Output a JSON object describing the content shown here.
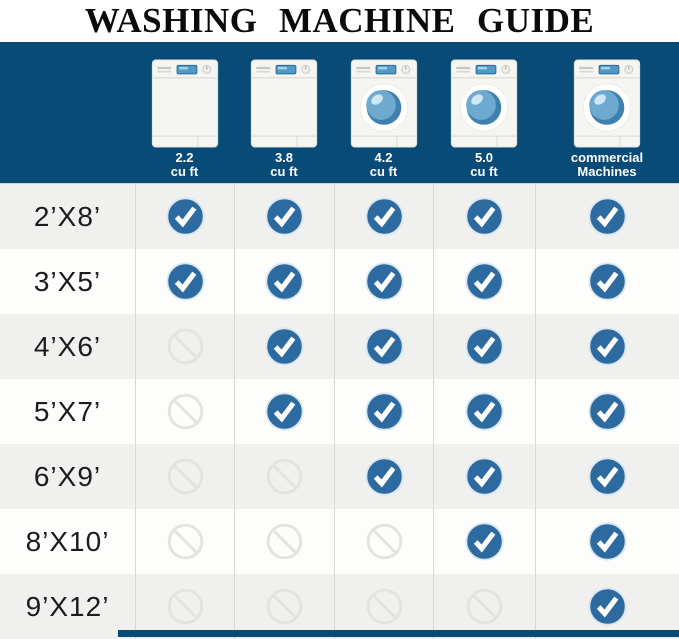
{
  "title": "WASHING MACHINE GUIDE",
  "colors": {
    "header_navy": "#094b77",
    "check_blue": "#2c6aa0",
    "check_halo": "#d9e7f2",
    "no_icon_gray": "#e3e3e0",
    "row_alt_gray": "#f0f0ee",
    "row_white": "#fdfdfc",
    "divider": "#d8d8d5"
  },
  "header": {
    "machines": [
      {
        "line1": "2.2",
        "line2": "cu ft",
        "type": "top-load"
      },
      {
        "line1": "3.8",
        "line2": "cu ft",
        "type": "top-load"
      },
      {
        "line1": "4.2",
        "line2": "cu ft",
        "type": "front-load"
      },
      {
        "line1": "5.0",
        "line2": "cu ft",
        "type": "front-load"
      },
      {
        "line1": "commercial",
        "line2": "Machines",
        "type": "front-load"
      }
    ]
  },
  "chart_data": {
    "type": "table",
    "title": "WASHING MACHINE GUIDE",
    "columns": [
      "2.2 cu ft",
      "3.8 cu ft",
      "4.2 cu ft",
      "5.0 cu ft",
      "commercial Machines"
    ],
    "rows": [
      {
        "label": "2’X8’",
        "values": [
          true,
          true,
          true,
          true,
          true
        ]
      },
      {
        "label": "3’X5’",
        "values": [
          true,
          true,
          true,
          true,
          true
        ]
      },
      {
        "label": "4’X6’",
        "values": [
          false,
          true,
          true,
          true,
          true
        ]
      },
      {
        "label": "5’X7’",
        "values": [
          false,
          true,
          true,
          true,
          true
        ]
      },
      {
        "label": "6’X9’",
        "values": [
          false,
          false,
          true,
          true,
          true
        ]
      },
      {
        "label": "8’X10’",
        "values": [
          false,
          false,
          false,
          true,
          true
        ]
      },
      {
        "label": "9’X12’",
        "values": [
          false,
          false,
          false,
          false,
          true
        ]
      }
    ],
    "cell_symbols": {
      "true": "check-icon",
      "false": "not-suitable-icon"
    }
  }
}
